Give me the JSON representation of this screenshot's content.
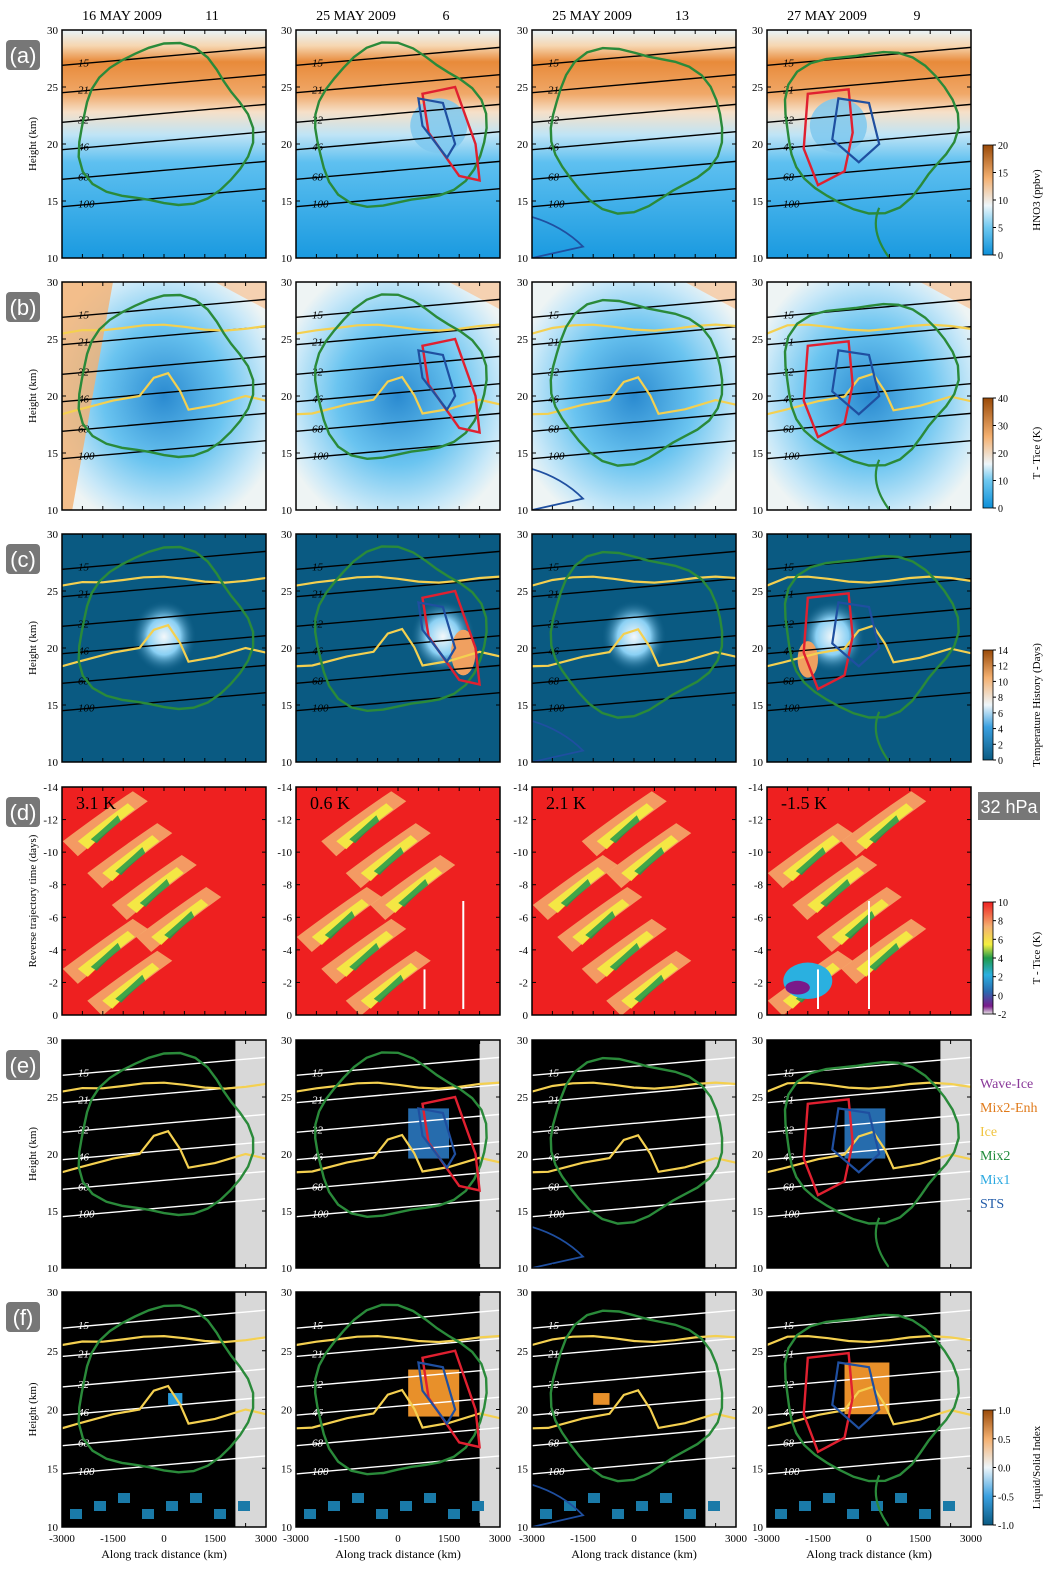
{
  "column_titles": [
    {
      "date": "16 MAY 2009",
      "num": "11"
    },
    {
      "date": "25 MAY 2009",
      "num": "6"
    },
    {
      "date": "25 MAY 2009",
      "num": "13"
    },
    {
      "date": "27 MAY 2009",
      "num": "9"
    }
  ],
  "row_labels": [
    "(a)",
    "(b)",
    "(c)",
    "(d)",
    "(e)",
    "(f)"
  ],
  "height_label": "Height (km)",
  "trajectory_label": "Reverse trajectory time (days)",
  "xlabel": "Along track distance (km)",
  "x_ticks": [
    "-3000",
    "-1500",
    "0",
    "1500",
    "3000"
  ],
  "height_ticks": [
    "10",
    "15",
    "20",
    "25",
    "30"
  ],
  "day_ticks": [
    "0",
    "-2",
    "-4",
    "-6",
    "-8",
    "-10",
    "-12",
    "-14"
  ],
  "pressure_levels": [
    "15",
    "21",
    "32",
    "46",
    "68",
    "100"
  ],
  "d_annotations": [
    "3.1 K",
    "0.6 K",
    "2.1 K",
    "-1.5 K"
  ],
  "d_pressure_badge": "32 hPa",
  "colorbars": [
    {
      "label": "HNO3 (ppbv)",
      "ticks": [
        "20",
        "15",
        "10",
        "5",
        "0"
      ],
      "min": 0,
      "max": 20
    },
    {
      "label": "T - Tice (K)",
      "ticks": [
        "40",
        "30",
        "20",
        "10",
        "0"
      ],
      "min": 0,
      "max": 40
    },
    {
      "label": "Temperature History (Days)",
      "ticks": [
        "14",
        "12",
        "10",
        "8",
        "6",
        "4",
        "2",
        "0"
      ],
      "min": 0,
      "max": 14
    },
    {
      "label": "T - Tice (K)",
      "ticks": [
        "10",
        "8",
        "6",
        "4",
        "2",
        "0",
        "-2"
      ],
      "min": -2,
      "max": 10
    },
    {
      "label": "Liquid/Solid Index",
      "ticks": [
        "1.0",
        "0.5",
        "0.0",
        "-0.5",
        "-1.0"
      ],
      "min": -1,
      "max": 1
    }
  ],
  "legend_e": [
    {
      "name": "Wave-Ice",
      "color": "#8a3a9a"
    },
    {
      "name": "Mix2-Enh",
      "color": "#e07a1a"
    },
    {
      "name": "Ice",
      "color": "#f0c440"
    },
    {
      "name": "Mix2",
      "color": "#1f8a3a"
    },
    {
      "name": "Mix1",
      "color": "#2aa8e0"
    },
    {
      "name": "STS",
      "color": "#1f5aa8"
    }
  ],
  "colors": {
    "vortex_edge": "#2a8a3a",
    "ice_contour": "#f4d050",
    "red_contour": "#e02030",
    "blue_contour": "#1f4fa0",
    "panel_c_bg": "#0a5a82",
    "panel_d_bg": "#ee2020",
    "panel_ef_bg": "#000000",
    "no_data": "#d8d8d8"
  }
}
